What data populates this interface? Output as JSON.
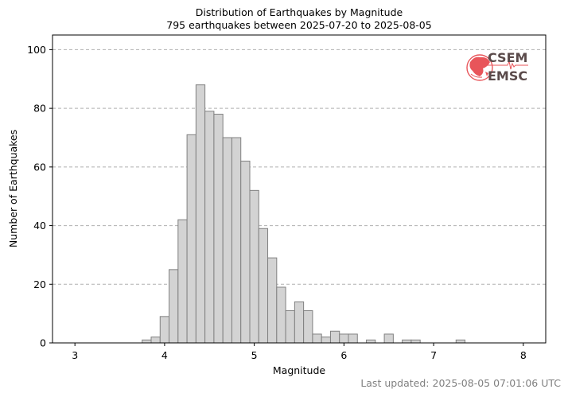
{
  "chart_data": {
    "type": "histogram",
    "title": "Distribution of Earthquakes by Magnitude",
    "subtitle": "795 earthquakes between 2025-07-20 to 2025-08-05",
    "xlabel": "Magnitude",
    "ylabel": "Number of Earthquakes",
    "xlim": [
      2.75,
      8.25
    ],
    "ylim": [
      0,
      105
    ],
    "bin_width": 0.1,
    "x_ticks": [
      3,
      4,
      5,
      6,
      7,
      8
    ],
    "y_ticks": [
      0,
      20,
      40,
      60,
      80,
      100
    ],
    "grid": "y-dashed",
    "bar_color": "#d3d3d3",
    "bar_edge_color": "#808080",
    "grid_color": "#b0b0b0",
    "bins": [
      {
        "x": 3.8,
        "count": 1
      },
      {
        "x": 3.9,
        "count": 2
      },
      {
        "x": 4.0,
        "count": 9
      },
      {
        "x": 4.1,
        "count": 25
      },
      {
        "x": 4.2,
        "count": 42
      },
      {
        "x": 4.3,
        "count": 71
      },
      {
        "x": 4.4,
        "count": 88
      },
      {
        "x": 4.5,
        "count": 79
      },
      {
        "x": 4.6,
        "count": 78
      },
      {
        "x": 4.7,
        "count": 70
      },
      {
        "x": 4.8,
        "count": 70
      },
      {
        "x": 4.9,
        "count": 62
      },
      {
        "x": 5.0,
        "count": 52
      },
      {
        "x": 5.1,
        "count": 39
      },
      {
        "x": 5.2,
        "count": 29
      },
      {
        "x": 5.3,
        "count": 19
      },
      {
        "x": 5.4,
        "count": 11
      },
      {
        "x": 5.5,
        "count": 14
      },
      {
        "x": 5.6,
        "count": 11
      },
      {
        "x": 5.7,
        "count": 3
      },
      {
        "x": 5.8,
        "count": 2
      },
      {
        "x": 5.9,
        "count": 4
      },
      {
        "x": 6.0,
        "count": 3
      },
      {
        "x": 6.1,
        "count": 3
      },
      {
        "x": 6.3,
        "count": 1
      },
      {
        "x": 6.5,
        "count": 3
      },
      {
        "x": 6.7,
        "count": 1
      },
      {
        "x": 6.8,
        "count": 1
      },
      {
        "x": 7.3,
        "count": 1
      }
    ]
  },
  "logo": {
    "line1": "CSEM",
    "line2": "EMSC",
    "globe_color": "#e8555a",
    "text_color": "#5a4a4a"
  },
  "footer": {
    "last_updated": "Last updated: 2025-08-05 07:01:06 UTC"
  }
}
